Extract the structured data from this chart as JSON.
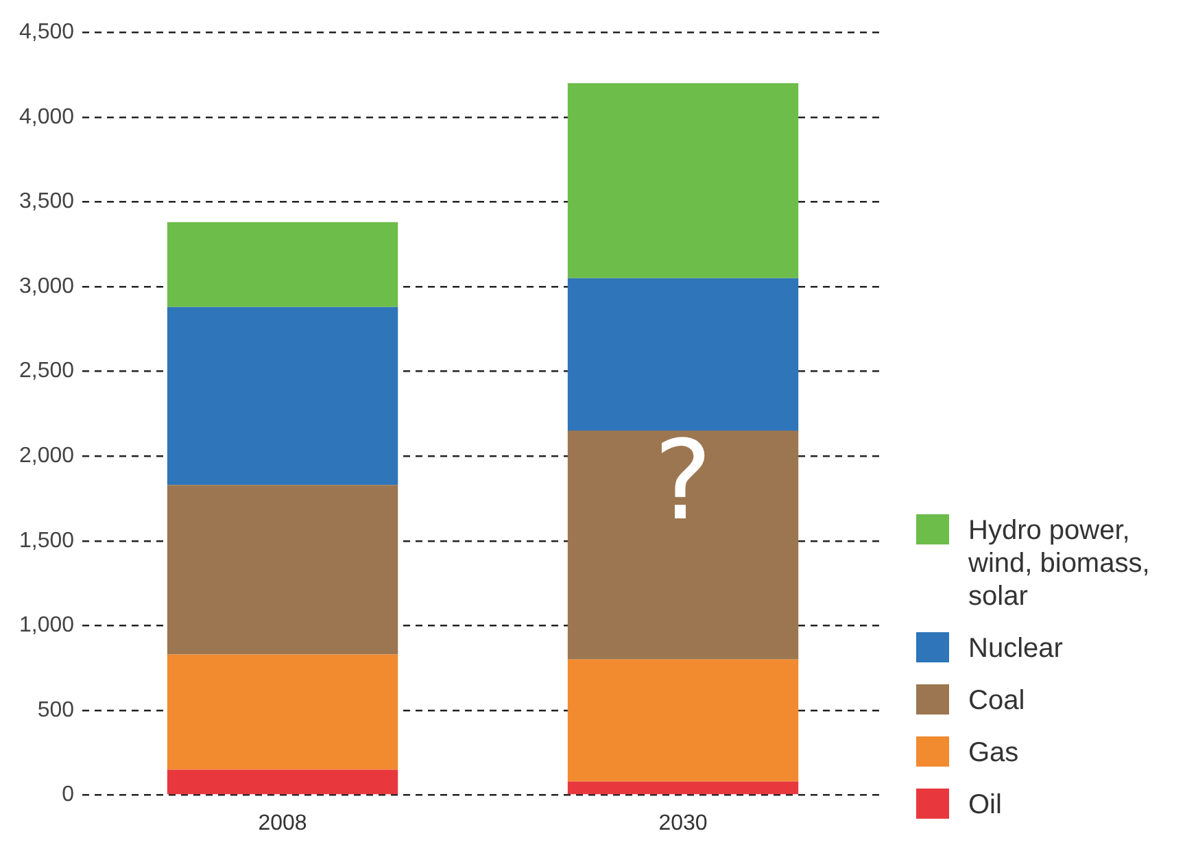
{
  "chart_data": {
    "type": "bar",
    "stacked": true,
    "categories": [
      "2008",
      "2030"
    ],
    "series": [
      {
        "name": "Oil",
        "color": "#e8383d",
        "values": [
          150,
          80
        ]
      },
      {
        "name": "Gas",
        "color": "#f28a30",
        "values": [
          680,
          720
        ]
      },
      {
        "name": "Coal",
        "color": "#9c7650",
        "values": [
          1000,
          1350
        ]
      },
      {
        "name": "Nuclear",
        "color": "#2e75b9",
        "values": [
          1050,
          900
        ]
      },
      {
        "name": "Hydro power, wind, biomass, solar",
        "color": "#6dbd4a",
        "values": [
          500,
          1150
        ]
      }
    ],
    "ylim": [
      0,
      4500
    ],
    "yticks": [
      {
        "value": 0,
        "label": "0"
      },
      {
        "value": 500,
        "label": "500"
      },
      {
        "value": 1000,
        "label": "1,000"
      },
      {
        "value": 1500,
        "label": "1,500"
      },
      {
        "value": 2000,
        "label": "2,000"
      },
      {
        "value": 2500,
        "label": "2,500"
      },
      {
        "value": 3000,
        "label": "3,000"
      },
      {
        "value": 3500,
        "label": "3,500"
      },
      {
        "value": 4000,
        "label": "4,000"
      },
      {
        "value": 4500,
        "label": "4,500"
      }
    ],
    "grid": "y",
    "legend": "right",
    "annotations": [
      "?"
    ]
  }
}
